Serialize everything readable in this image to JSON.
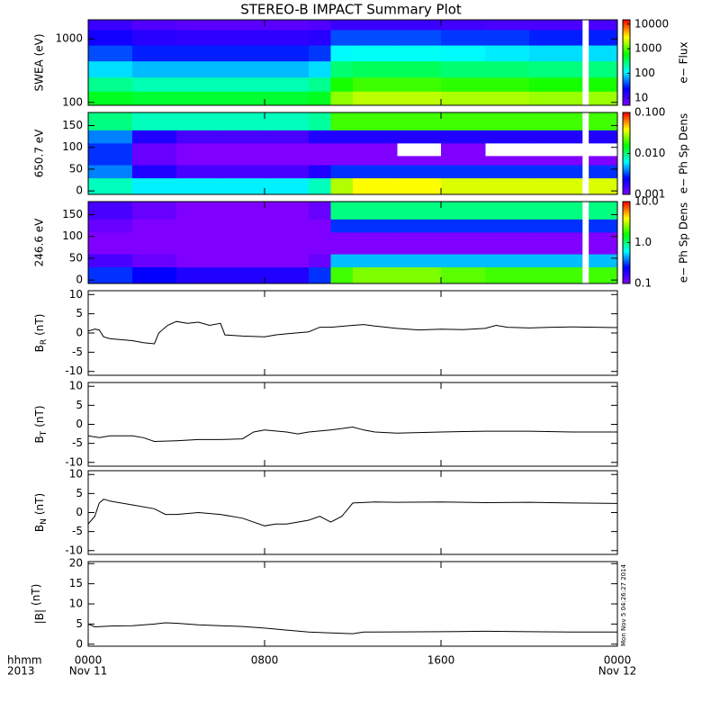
{
  "figure": {
    "title": "STEREO-B IMPACT Summary Plot",
    "xlim": [
      0,
      24
    ],
    "xticks": [
      {
        "value": 0,
        "label": "0000"
      },
      {
        "value": 8,
        "label": "0800"
      },
      {
        "value": 16,
        "label": "1600"
      },
      {
        "value": 24,
        "label": "0000"
      }
    ],
    "x_date_labels": [
      {
        "value": 0,
        "label": "Nov 11"
      },
      {
        "value": 24,
        "label": "Nov 12"
      }
    ],
    "x_axis_label": [
      "hhmm",
      "2013"
    ],
    "timestamp": "Mon Nov  5 04:26:27 2014"
  },
  "chart_data": [
    {
      "type": "heatmap",
      "ylabel": "SWEA (eV)",
      "log_y": true,
      "ylim": [
        90,
        2000
      ],
      "yticks": [
        100,
        1000
      ],
      "xbins": [
        0,
        2,
        4,
        6,
        8,
        10,
        11,
        12,
        14,
        16,
        18,
        20,
        22.4,
        22.7,
        24
      ],
      "ybins": [
        90,
        150,
        250,
        450,
        800,
        1400,
        2000
      ],
      "values": [
        [
          500,
          450,
          450,
          450,
          450,
          500,
          1500,
          2000,
          2000,
          1800,
          1800,
          1600,
          null,
          1600
        ],
        [
          250,
          200,
          200,
          200,
          200,
          250,
          700,
          900,
          900,
          800,
          800,
          700,
          null,
          700
        ],
        [
          100,
          80,
          80,
          80,
          80,
          100,
          300,
          350,
          350,
          300,
          300,
          280,
          null,
          280
        ],
        [
          40,
          30,
          30,
          30,
          30,
          35,
          120,
          130,
          130,
          120,
          110,
          100,
          null,
          100
        ],
        [
          20,
          15,
          14,
          14,
          14,
          15,
          40,
          40,
          40,
          35,
          35,
          30,
          null,
          30
        ],
        [
          12,
          9,
          8,
          8,
          8,
          9,
          12,
          12,
          12,
          11,
          10,
          10,
          null,
          10
        ]
      ],
      "colorbar": {
        "label": "e− Flux",
        "log": true,
        "lim": [
          5,
          15000
        ],
        "ticks": [
          10,
          100,
          1000,
          10000
        ]
      }
    },
    {
      "type": "heatmap",
      "ylabel": "650.7 eV",
      "log_y": false,
      "ylim": [
        -8,
        180
      ],
      "yticks": [
        0,
        50,
        100,
        150
      ],
      "xbins": [
        0,
        2,
        4,
        6,
        8,
        10,
        11,
        12,
        14,
        16,
        18,
        20,
        22.4,
        22.7,
        24
      ],
      "ybins": [
        -8,
        30,
        60,
        80,
        110,
        140,
        180
      ],
      "values": [
        [
          0.008,
          0.006,
          0.006,
          0.006,
          0.006,
          0.008,
          0.03,
          0.04,
          0.04,
          0.035,
          0.035,
          0.035,
          null,
          0.035
        ],
        [
          0.004,
          0.002,
          0.0015,
          0.0015,
          0.0015,
          0.002,
          0.003,
          0.003,
          0.003,
          0.003,
          0.003,
          0.003,
          null,
          0.003
        ],
        [
          0.003,
          0.0012,
          0.001,
          0.001,
          0.001,
          0.001,
          0.001,
          0.001,
          0.001,
          0.001,
          0.001,
          0.001,
          null,
          0.001
        ],
        [
          0.003,
          0.0012,
          0.001,
          0.001,
          0.001,
          0.001,
          0.001,
          0.001,
          null,
          0.001,
          null,
          null,
          null,
          null
        ],
        [
          0.004,
          0.002,
          0.0015,
          0.0015,
          0.0015,
          0.002,
          0.002,
          0.002,
          0.002,
          0.002,
          0.002,
          0.002,
          null,
          0.002
        ],
        [
          0.01,
          0.008,
          0.008,
          0.008,
          0.008,
          0.009,
          0.02,
          0.02,
          0.02,
          0.02,
          0.02,
          0.02,
          null,
          0.02
        ]
      ],
      "colorbar": {
        "label": "e− Ph Sp Dens",
        "log": true,
        "lim": [
          0.001,
          0.1
        ],
        "ticks": [
          0.001,
          {
            "value": 0.01,
            "label": "0.010"
          },
          {
            "value": 0.1,
            "label": "0.100"
          }
        ]
      }
    },
    {
      "type": "heatmap",
      "ylabel": "246.6 eV",
      "log_y": false,
      "ylim": [
        -8,
        180
      ],
      "yticks": [
        0,
        50,
        100,
        150
      ],
      "xbins": [
        0,
        2,
        4,
        6,
        8,
        10,
        11,
        12,
        14,
        16,
        18,
        20,
        22.4,
        22.7,
        24
      ],
      "ybins": [
        -8,
        30,
        60,
        80,
        110,
        140,
        180
      ],
      "values": [
        [
          0.3,
          0.25,
          0.2,
          0.2,
          0.2,
          0.3,
          2,
          2.5,
          2.5,
          2.2,
          2,
          2,
          null,
          2
        ],
        [
          0.15,
          0.12,
          0.1,
          0.1,
          0.1,
          0.12,
          0.5,
          0.5,
          0.5,
          0.5,
          0.5,
          0.5,
          null,
          0.5
        ],
        [
          0.1,
          0.1,
          0.1,
          0.1,
          0.1,
          0.1,
          0.1,
          0.1,
          0.1,
          0.1,
          0.1,
          0.1,
          null,
          0.1
        ],
        [
          0.1,
          0.1,
          0.1,
          0.1,
          0.1,
          0.1,
          0.1,
          0.1,
          0.1,
          0.1,
          0.1,
          0.1,
          null,
          0.1
        ],
        [
          0.12,
          0.1,
          0.1,
          0.1,
          0.1,
          0.1,
          0.3,
          0.3,
          0.3,
          0.3,
          0.3,
          0.3,
          null,
          0.3
        ],
        [
          0.15,
          0.12,
          0.1,
          0.1,
          0.1,
          0.12,
          1,
          1,
          1,
          1,
          1,
          1,
          null,
          1
        ]
      ],
      "colorbar": {
        "label": "e− Ph Sp Dens",
        "log": true,
        "lim": [
          0.1,
          10
        ],
        "ticks": [
          0.1,
          {
            "value": 1,
            "label": "1.0"
          },
          {
            "value": 10,
            "label": "10.0"
          }
        ]
      }
    },
    {
      "type": "line",
      "ylabel": [
        "B",
        "R",
        "(nT)"
      ],
      "ylim": [
        -11,
        11
      ],
      "yticks": [
        -10,
        -5,
        0,
        5,
        10
      ],
      "color": "#000000",
      "x": [
        0,
        0.3,
        0.5,
        0.7,
        1,
        2,
        2.5,
        3,
        3.2,
        3.6,
        4,
        4.5,
        5,
        5.5,
        6,
        6.2,
        7,
        8,
        8.5,
        9,
        10,
        10.5,
        11,
        12,
        12.5,
        13,
        14,
        15,
        16,
        17,
        18,
        18.5,
        19,
        20,
        21,
        22,
        23,
        24
      ],
      "values": [
        0.5,
        1,
        0.8,
        -1,
        -1.5,
        -2,
        -2.5,
        -2.8,
        0,
        2,
        3,
        2.5,
        2.8,
        2,
        2.5,
        -0.5,
        -0.8,
        -1,
        -0.5,
        -0.2,
        0.3,
        1.5,
        1.5,
        2,
        2.2,
        1.8,
        1.2,
        0.8,
        1,
        0.9,
        1.2,
        2,
        1.5,
        1.3,
        1.5,
        1.6,
        1.5,
        1.4
      ]
    },
    {
      "type": "line",
      "ylabel": [
        "B",
        "T",
        "(nT)"
      ],
      "ylim": [
        -11,
        11
      ],
      "yticks": [
        -10,
        -5,
        0,
        5,
        10
      ],
      "color": "#000000",
      "x": [
        0,
        0.5,
        1,
        2,
        2.5,
        3,
        4,
        5,
        6,
        7,
        7.5,
        8,
        9,
        9.5,
        10,
        11,
        12,
        12.5,
        13,
        14,
        16,
        18,
        20,
        22,
        23,
        24
      ],
      "values": [
        -3,
        -3.5,
        -3,
        -3,
        -3.5,
        -4.5,
        -4.3,
        -4,
        -4,
        -3.8,
        -2,
        -1.5,
        -2,
        -2.5,
        -2,
        -1.5,
        -0.7,
        -1.5,
        -2,
        -2.3,
        -2,
        -1.8,
        -1.8,
        -2,
        -2,
        -2
      ]
    },
    {
      "type": "line",
      "ylabel": [
        "B",
        "N",
        "(nT)"
      ],
      "ylim": [
        -11,
        11
      ],
      "yticks": [
        -10,
        -5,
        0,
        5,
        10
      ],
      "color": "#000000",
      "x": [
        0,
        0.3,
        0.5,
        0.7,
        1,
        2,
        3,
        3.5,
        4,
        5,
        6,
        7,
        8,
        8.5,
        9,
        10,
        10.5,
        11,
        11.5,
        12,
        13,
        14,
        16,
        18,
        20,
        22,
        24
      ],
      "values": [
        -3,
        -1,
        2.5,
        3.5,
        3,
        2,
        1,
        -0.5,
        -0.5,
        0,
        -0.5,
        -1.5,
        -3.5,
        -3,
        -3,
        -2,
        -1,
        -2.5,
        -1,
        2.5,
        2.8,
        2.7,
        2.8,
        2.6,
        2.7,
        2.5,
        2.4
      ]
    },
    {
      "type": "line",
      "ylabel": [
        "|B|",
        "",
        "(nT)"
      ],
      "ylim": [
        -0.5,
        20.5
      ],
      "yticks": [
        0,
        5,
        10,
        15,
        20
      ],
      "color": "#000000",
      "x": [
        0,
        0.3,
        1,
        2,
        3,
        3.5,
        4,
        5,
        6,
        7,
        8,
        9,
        10,
        11,
        12,
        12.5,
        13,
        16,
        18,
        20,
        22,
        24
      ],
      "values": [
        5,
        4.3,
        4.5,
        4.6,
        5,
        5.3,
        5.2,
        4.8,
        4.6,
        4.4,
        4,
        3.5,
        3,
        2.8,
        2.6,
        3,
        3,
        3.1,
        3.2,
        3.1,
        3,
        3
      ]
    }
  ]
}
